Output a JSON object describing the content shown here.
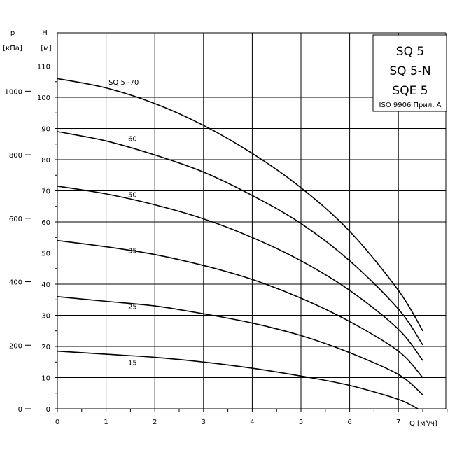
{
  "chart_data": {
    "type": "line",
    "title_lines": [
      "SQ 5",
      "SQ 5-N",
      "SQE 5"
    ],
    "note": "ISO 9906 Прил. A",
    "xlabel": "Q [м³/ч]",
    "ylabel": "H",
    "ylabel_unit": "[м]",
    "y2label": "p",
    "y2label_unit": "[кПа]",
    "x_ticks": [
      "0",
      "1",
      "2",
      "3",
      "4",
      "5",
      "6",
      "7"
    ],
    "y_ticks": [
      "0",
      "10",
      "20",
      "30",
      "40",
      "50",
      "60",
      "70",
      "80",
      "90",
      "100",
      "110"
    ],
    "y2_ticks": [
      "0",
      "200",
      "400",
      "600",
      "800",
      "1000"
    ],
    "xlim": [
      0,
      8
    ],
    "ylim": [
      0,
      120
    ],
    "y2_values": [
      0,
      200,
      400,
      600,
      800,
      1000
    ],
    "grid": true,
    "series": [
      {
        "name": "SQ 5 -70",
        "x": [
          0,
          1,
          2,
          3,
          4,
          5,
          6,
          7,
          7.5
        ],
        "y": [
          106,
          103,
          98,
          91,
          82,
          71,
          57,
          38,
          25
        ]
      },
      {
        "name": "-60",
        "x": [
          0,
          1,
          2,
          3,
          4,
          5,
          6,
          7,
          7.5
        ],
        "y": [
          89,
          86,
          81.5,
          76,
          68.5,
          59.5,
          47.5,
          32,
          20.5
        ]
      },
      {
        "name": "-50",
        "x": [
          0,
          1,
          2,
          3,
          4,
          5,
          6,
          7,
          7.5
        ],
        "y": [
          71.5,
          69,
          65.5,
          61,
          55,
          47.5,
          38,
          25.5,
          15.5
        ]
      },
      {
        "name": "-35",
        "x": [
          0,
          1,
          2,
          3,
          4,
          5,
          6,
          7,
          7.5
        ],
        "y": [
          54,
          52,
          49.5,
          46,
          41.5,
          35.5,
          28,
          18.5,
          10
        ]
      },
      {
        "name": "-25",
        "x": [
          0,
          1,
          2,
          3,
          4,
          5,
          6,
          7,
          7.5
        ],
        "y": [
          36,
          34.5,
          33,
          30.5,
          27.5,
          23.5,
          18,
          11,
          4.5
        ]
      },
      {
        "name": "-15",
        "x": [
          0,
          1,
          2,
          3,
          4,
          5,
          6,
          7,
          7.4
        ],
        "y": [
          18.5,
          17.5,
          16.5,
          15,
          13,
          10.5,
          7.5,
          3,
          0
        ]
      }
    ]
  }
}
